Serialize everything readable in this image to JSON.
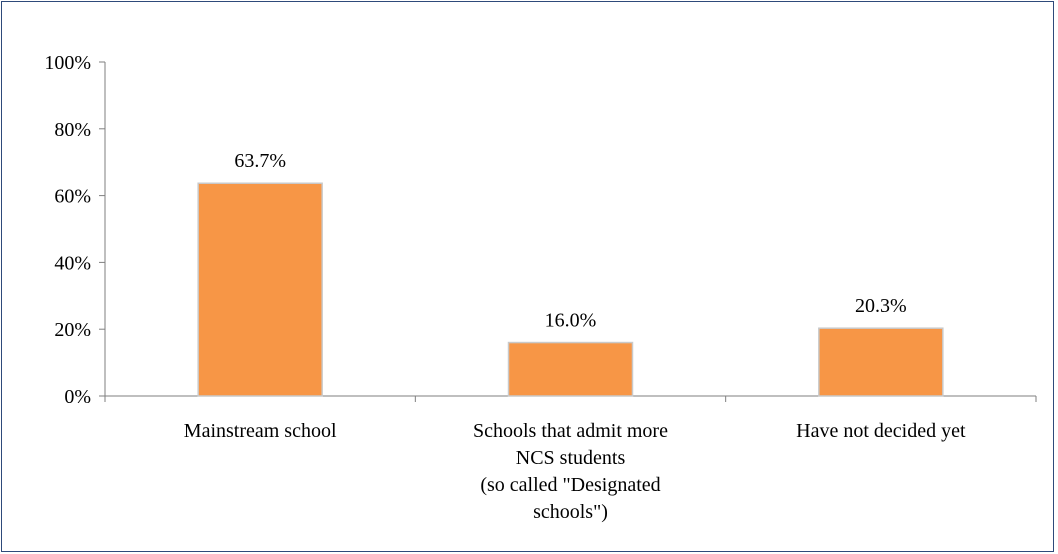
{
  "chart_data": {
    "type": "bar",
    "categories": [
      [
        "Mainstream school"
      ],
      [
        "Schools that admit more",
        "NCS students",
        "(so called \"Designated",
        "schools\")"
      ],
      [
        "Have not decided yet"
      ]
    ],
    "values": [
      63.7,
      16.0,
      20.3
    ],
    "value_labels": [
      "63.7%",
      "16.0%",
      "20.3%"
    ],
    "yticks": [
      "0%",
      "20%",
      "40%",
      "60%",
      "80%",
      "100%"
    ],
    "ylim": [
      0,
      100
    ],
    "grid": false,
    "legend": "none",
    "title": "",
    "xlabel": "",
    "ylabel": "",
    "colors": {
      "bar_fill": "#f79646",
      "bar_stroke": "#c9c9c9",
      "axis": "#7f7f7f",
      "frame": "#2e4a7a"
    }
  }
}
